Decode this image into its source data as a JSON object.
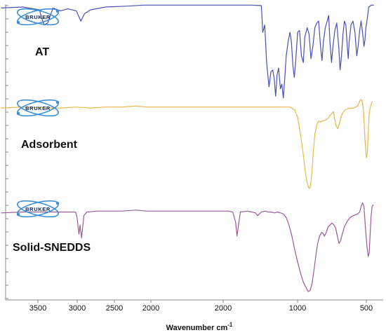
{
  "chart_data": {
    "type": "line",
    "title": "",
    "xlabel": "Wavenumber",
    "xlabel_unit": "cm",
    "xlabel_unit_exp": "-1",
    "x_ticks_left": [
      3500,
      3000,
      2500,
      2000
    ],
    "x_ticks_right": [
      2000,
      1000,
      500
    ],
    "x_axis": "reversed wavenumber scale, broken between 2000 and 2000",
    "ylim": [
      0,
      1
    ],
    "grid": false,
    "legend": "none",
    "logo_text": "BRUKER",
    "series": [
      {
        "name": "AT",
        "color": "#4a4fb5",
        "points": [
          [
            3990,
            0.96
          ],
          [
            3700,
            0.97
          ],
          [
            3480,
            0.94
          ],
          [
            3420,
            0.78
          ],
          [
            3370,
            0.8
          ],
          [
            3300,
            0.96
          ],
          [
            3200,
            0.93
          ],
          [
            3100,
            0.95
          ],
          [
            2990,
            0.93
          ],
          [
            2930,
            0.82
          ],
          [
            2880,
            0.9
          ],
          [
            2800,
            0.94
          ],
          [
            2600,
            0.97
          ],
          [
            2300,
            0.98
          ],
          [
            2100,
            0.99
          ],
          [
            2000,
            0.99
          ],
          [
            1900,
            0.99
          ],
          [
            1800,
            0.99
          ],
          [
            1700,
            0.99
          ],
          [
            1600,
            0.985
          ],
          [
            1585,
            0.7
          ],
          [
            1565,
            0.78
          ],
          [
            1545,
            0.38
          ],
          [
            1520,
            0.12
          ],
          [
            1500,
            0.28
          ],
          [
            1480,
            0.3
          ],
          [
            1465,
            0.2
          ],
          [
            1450,
            0.02
          ],
          [
            1435,
            0.25
          ],
          [
            1420,
            0.32
          ],
          [
            1400,
            0.1
          ],
          [
            1385,
            0.15
          ],
          [
            1370,
            0.0
          ],
          [
            1355,
            0.2
          ],
          [
            1340,
            0.45
          ],
          [
            1320,
            0.6
          ],
          [
            1300,
            0.7
          ],
          [
            1285,
            0.6
          ],
          [
            1270,
            0.35
          ],
          [
            1255,
            0.22
          ],
          [
            1240,
            0.4
          ],
          [
            1220,
            0.7
          ],
          [
            1200,
            0.72
          ],
          [
            1180,
            0.45
          ],
          [
            1160,
            0.38
          ],
          [
            1145,
            0.65
          ],
          [
            1120,
            0.75
          ],
          [
            1100,
            0.68
          ],
          [
            1080,
            0.42
          ],
          [
            1060,
            0.55
          ],
          [
            1040,
            0.75
          ],
          [
            1020,
            0.8
          ],
          [
            1000,
            0.82
          ],
          [
            980,
            0.55
          ],
          [
            965,
            0.4
          ],
          [
            950,
            0.6
          ],
          [
            930,
            0.75
          ],
          [
            910,
            0.82
          ],
          [
            895,
            0.88
          ],
          [
            880,
            0.58
          ],
          [
            865,
            0.38
          ],
          [
            850,
            0.55
          ],
          [
            830,
            0.72
          ],
          [
            810,
            0.8
          ],
          [
            790,
            0.55
          ],
          [
            775,
            0.3
          ],
          [
            760,
            0.45
          ],
          [
            745,
            0.68
          ],
          [
            730,
            0.82
          ],
          [
            715,
            0.78
          ],
          [
            700,
            0.55
          ],
          [
            690,
            0.42
          ],
          [
            680,
            0.6
          ],
          [
            660,
            0.78
          ],
          [
            640,
            0.82
          ],
          [
            620,
            0.7
          ],
          [
            600,
            0.45
          ],
          [
            585,
            0.56
          ],
          [
            570,
            0.72
          ],
          [
            555,
            0.82
          ],
          [
            540,
            0.7
          ],
          [
            525,
            0.55
          ],
          [
            515,
            0.62
          ],
          [
            505,
            0.75
          ],
          [
            490,
            0.85
          ],
          [
            475,
            0.97
          ],
          [
            460,
            0.98
          ],
          [
            450,
            0.99
          ],
          [
            420,
            0.99
          ]
        ]
      },
      {
        "name": "Adsorbent",
        "color": "#e8b84b",
        "points": [
          [
            3990,
            0.88
          ],
          [
            3700,
            0.89
          ],
          [
            3400,
            0.88
          ],
          [
            3200,
            0.88
          ],
          [
            3000,
            0.89
          ],
          [
            2800,
            0.88
          ],
          [
            2600,
            0.89
          ],
          [
            2400,
            0.89
          ],
          [
            2200,
            0.9
          ],
          [
            2050,
            0.89
          ],
          [
            2000,
            0.89
          ],
          [
            1900,
            0.89
          ],
          [
            1800,
            0.89
          ],
          [
            1700,
            0.89
          ],
          [
            1600,
            0.89
          ],
          [
            1500,
            0.89
          ],
          [
            1400,
            0.89
          ],
          [
            1300,
            0.89
          ],
          [
            1250,
            0.86
          ],
          [
            1220,
            0.78
          ],
          [
            1190,
            0.6
          ],
          [
            1160,
            0.38
          ],
          [
            1140,
            0.2
          ],
          [
            1120,
            0.08
          ],
          [
            1100,
            0.02
          ],
          [
            1085,
            0.05
          ],
          [
            1070,
            0.2
          ],
          [
            1055,
            0.42
          ],
          [
            1040,
            0.6
          ],
          [
            1020,
            0.7
          ],
          [
            1000,
            0.74
          ],
          [
            980,
            0.73
          ],
          [
            960,
            0.74
          ],
          [
            930,
            0.75
          ],
          [
            900,
            0.77
          ],
          [
            880,
            0.8
          ],
          [
            860,
            0.82
          ],
          [
            845,
            0.84
          ],
          [
            820,
            0.7
          ],
          [
            800,
            0.66
          ],
          [
            780,
            0.72
          ],
          [
            760,
            0.8
          ],
          [
            740,
            0.84
          ],
          [
            720,
            0.86
          ],
          [
            700,
            0.87
          ],
          [
            670,
            0.88
          ],
          [
            640,
            0.88
          ],
          [
            610,
            0.89
          ],
          [
            590,
            0.9
          ],
          [
            575,
            0.94
          ],
          [
            560,
            0.97
          ],
          [
            545,
            0.96
          ],
          [
            530,
            0.86
          ],
          [
            515,
            0.55
          ],
          [
            500,
            0.35
          ],
          [
            490,
            0.4
          ],
          [
            480,
            0.62
          ],
          [
            470,
            0.82
          ],
          [
            460,
            0.88
          ],
          [
            440,
            0.95
          ]
        ]
      },
      {
        "name": "Solid-SNEDDS",
        "color": "#9b5a9b",
        "points": [
          [
            3990,
            0.85
          ],
          [
            3700,
            0.86
          ],
          [
            3500,
            0.86
          ],
          [
            3300,
            0.86
          ],
          [
            3100,
            0.86
          ],
          [
            3000,
            0.86
          ],
          [
            2980,
            0.8
          ],
          [
            2955,
            0.62
          ],
          [
            2940,
            0.72
          ],
          [
            2920,
            0.58
          ],
          [
            2890,
            0.82
          ],
          [
            2850,
            0.86
          ],
          [
            2700,
            0.87
          ],
          [
            2400,
            0.87
          ],
          [
            2200,
            0.88
          ],
          [
            2050,
            0.87
          ],
          [
            2000,
            0.87
          ],
          [
            1950,
            0.87
          ],
          [
            1900,
            0.86
          ],
          [
            1870,
            0.75
          ],
          [
            1855,
            0.6
          ],
          [
            1840,
            0.72
          ],
          [
            1820,
            0.86
          ],
          [
            1750,
            0.87
          ],
          [
            1700,
            0.86
          ],
          [
            1660,
            0.85
          ],
          [
            1640,
            0.82
          ],
          [
            1620,
            0.84
          ],
          [
            1600,
            0.86
          ],
          [
            1560,
            0.87
          ],
          [
            1530,
            0.86
          ],
          [
            1500,
            0.86
          ],
          [
            1460,
            0.85
          ],
          [
            1430,
            0.86
          ],
          [
            1400,
            0.85
          ],
          [
            1370,
            0.84
          ],
          [
            1340,
            0.8
          ],
          [
            1310,
            0.72
          ],
          [
            1280,
            0.6
          ],
          [
            1250,
            0.45
          ],
          [
            1220,
            0.32
          ],
          [
            1190,
            0.2
          ],
          [
            1160,
            0.1
          ],
          [
            1130,
            0.04
          ],
          [
            1110,
            0.0
          ],
          [
            1090,
            0.01
          ],
          [
            1070,
            0.08
          ],
          [
            1050,
            0.22
          ],
          [
            1030,
            0.38
          ],
          [
            1010,
            0.52
          ],
          [
            990,
            0.6
          ],
          [
            970,
            0.64
          ],
          [
            955,
            0.63
          ],
          [
            940,
            0.6
          ],
          [
            920,
            0.64
          ],
          [
            900,
            0.7
          ],
          [
            880,
            0.72
          ],
          [
            860,
            0.74
          ],
          [
            840,
            0.72
          ],
          [
            820,
            0.68
          ],
          [
            800,
            0.58
          ],
          [
            785,
            0.52
          ],
          [
            770,
            0.55
          ],
          [
            750,
            0.63
          ],
          [
            730,
            0.7
          ],
          [
            700,
            0.76
          ],
          [
            670,
            0.8
          ],
          [
            640,
            0.82
          ],
          [
            610,
            0.83
          ],
          [
            590,
            0.84
          ],
          [
            570,
            0.86
          ],
          [
            555,
            0.92
          ],
          [
            540,
            0.96
          ],
          [
            525,
            0.92
          ],
          [
            510,
            0.7
          ],
          [
            495,
            0.5
          ],
          [
            480,
            0.38
          ],
          [
            470,
            0.42
          ],
          [
            460,
            0.62
          ],
          [
            450,
            0.82
          ],
          [
            440,
            0.92
          ],
          [
            425,
            0.94
          ]
        ]
      }
    ]
  }
}
